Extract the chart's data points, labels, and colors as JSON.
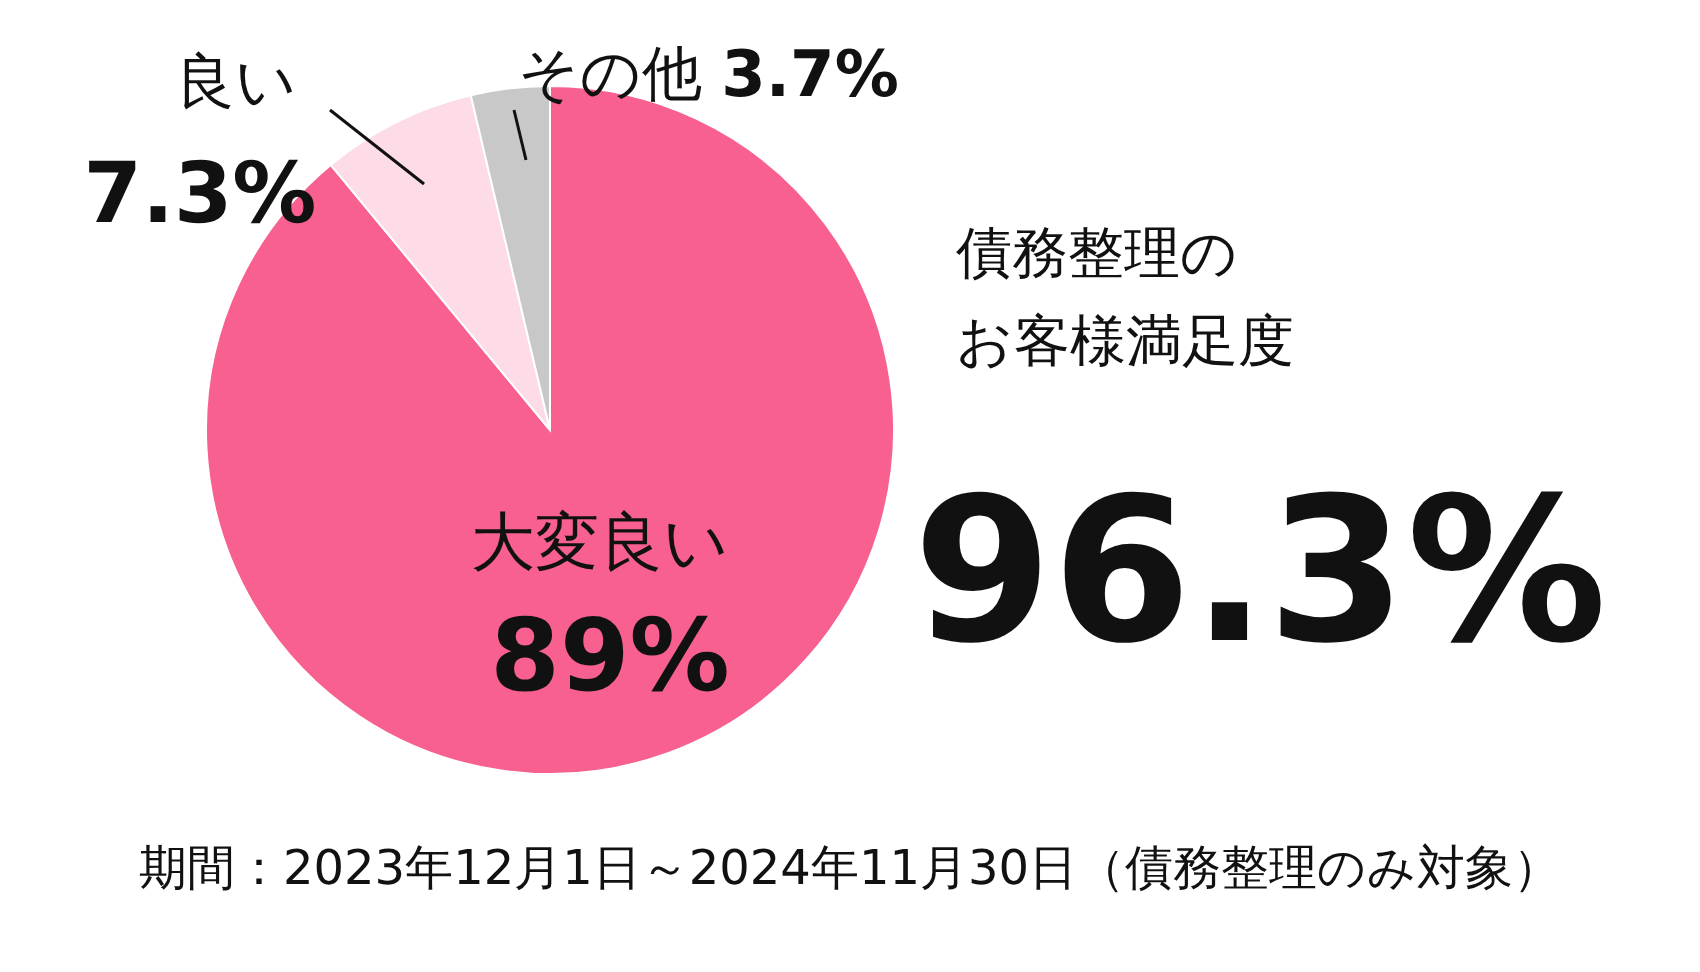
{
  "chart_data": {
    "type": "pie",
    "categories": [
      "大変良い",
      "良い",
      "その他"
    ],
    "values": [
      89,
      7.3,
      3.7
    ],
    "colors": [
      "#f7608f",
      "#fddbe7",
      "#c8c8c8"
    ],
    "value_labels": [
      "89%",
      "7.3%",
      "3.7%"
    ],
    "annotations": [
      "債務整理の",
      "お客様満足度",
      "96.3%",
      "期間：2023年12月1日～2024年11月30日（債務整理のみ対象）"
    ]
  }
}
